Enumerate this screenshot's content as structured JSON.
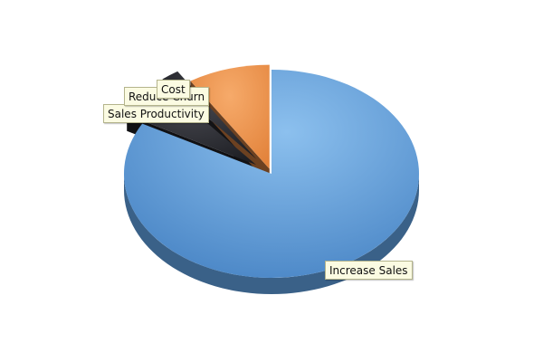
{
  "chart_data": {
    "type": "pie",
    "style": "3d",
    "slices": [
      {
        "label": "Increase Sales",
        "value": 83,
        "color": "#5d9cdc"
      },
      {
        "label": "Sales Productivity",
        "value": 6,
        "color": "#25262c"
      },
      {
        "label": "Reduce Churn",
        "value": 2,
        "color": "#2a2a2f"
      },
      {
        "label": "Cost",
        "value": 9,
        "color": "#f0914a"
      }
    ],
    "data_labels": true
  }
}
